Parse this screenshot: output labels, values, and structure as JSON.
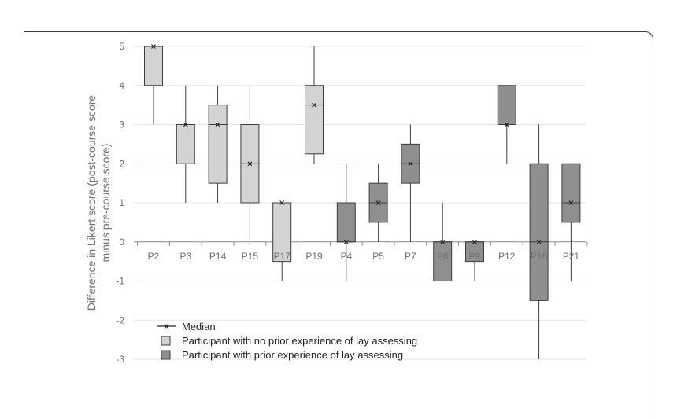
{
  "chart_data": {
    "type": "boxplot",
    "ylabel_line1": "Difference in Likert score (post-course score",
    "ylabel_line2": "minus pre-course score)",
    "ylim": [
      -3,
      5
    ],
    "yticks": [
      "5",
      "4",
      "3",
      "2",
      "1",
      "0",
      "-1",
      "-2",
      "-3"
    ],
    "grid": true,
    "legend_position": "bottom-left",
    "legend": {
      "median": "Median",
      "no_prior": "Participant with no prior experience of lay assessing",
      "prior": "Participant with prior experience of lay assessing"
    },
    "colors": {
      "no_prior": "#d3d3d3",
      "prior": "#8f8f8f",
      "grid": "#e6e6e6",
      "axis": "#8a8a8a",
      "box_stroke": "#3d3d3d"
    },
    "boxes": [
      {
        "label": "P2",
        "group": "no_prior",
        "min": 3,
        "q1": 4,
        "median": 5,
        "q3": 5,
        "max": 5
      },
      {
        "label": "P3",
        "group": "no_prior",
        "min": 1,
        "q1": 2,
        "median": 3,
        "q3": 3,
        "max": 4
      },
      {
        "label": "P14",
        "group": "no_prior",
        "min": 1,
        "q1": 1.5,
        "median": 3,
        "q3": 3.5,
        "max": 4
      },
      {
        "label": "P15",
        "group": "no_prior",
        "min": 0,
        "q1": 1,
        "median": 2,
        "q3": 3,
        "max": 4
      },
      {
        "label": "P17",
        "group": "no_prior",
        "min": -1,
        "q1": -0.5,
        "median": 1,
        "q3": 1,
        "max": 1
      },
      {
        "label": "P19",
        "group": "no_prior",
        "min": 2,
        "q1": 2.25,
        "median": 3.5,
        "q3": 4,
        "max": 5
      },
      {
        "label": "P4",
        "group": "prior",
        "min": -1,
        "q1": 0,
        "median": 0,
        "q3": 1,
        "max": 2
      },
      {
        "label": "P5",
        "group": "prior",
        "min": 0,
        "q1": 0.5,
        "median": 1,
        "q3": 1.5,
        "max": 2
      },
      {
        "label": "P7",
        "group": "prior",
        "min": 0,
        "q1": 1.5,
        "median": 2,
        "q3": 2.5,
        "max": 3
      },
      {
        "label": "P8",
        "group": "prior",
        "min": -1,
        "q1": -1,
        "median": 0,
        "q3": 0,
        "max": 1
      },
      {
        "label": "P9",
        "group": "prior",
        "min": -1,
        "q1": -0.5,
        "median": 0,
        "q3": 0,
        "max": 0
      },
      {
        "label": "P12",
        "group": "prior",
        "min": 2,
        "q1": 3,
        "median": 3,
        "q3": 4,
        "max": 4
      },
      {
        "label": "P16",
        "group": "prior",
        "min": -3,
        "q1": -1.5,
        "median": 0,
        "q3": 2,
        "max": 3
      },
      {
        "label": "P21",
        "group": "prior",
        "min": -1,
        "q1": 0.5,
        "median": 1,
        "q3": 2,
        "max": 2
      }
    ]
  }
}
